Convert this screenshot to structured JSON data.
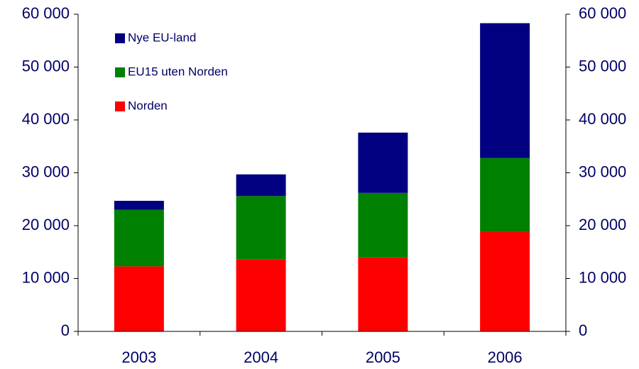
{
  "chart_data": {
    "type": "stacked_bar",
    "categories": [
      "2003",
      "2004",
      "2005",
      "2006"
    ],
    "series": [
      {
        "name": "Norden",
        "color": "#ff0000",
        "values": [
          12300,
          13600,
          14000,
          18800
        ]
      },
      {
        "name": "EU15 uten Norden",
        "color": "#008000",
        "values": [
          10700,
          12000,
          12200,
          14000
        ]
      },
      {
        "name": "Nye EU-land",
        "color": "#000080",
        "values": [
          1700,
          4100,
          11400,
          25500
        ]
      }
    ],
    "ylim": [
      0,
      60000
    ],
    "yticks": [
      0,
      {
        "value": 10000,
        "label": "10 000"
      },
      {
        "value": 20000,
        "label": "20 000"
      },
      {
        "value": 30000,
        "label": "30 000"
      },
      {
        "value": 40000,
        "label": "40 000"
      },
      {
        "value": 50000,
        "label": "50 000"
      },
      {
        "value": 60000,
        "label": "60 000"
      }
    ],
    "y2lim": [
      0,
      60000
    ],
    "y2ticks": [
      0,
      {
        "value": 10000,
        "label": "10 000"
      },
      {
        "value": 20000,
        "label": "20 000"
      },
      {
        "value": 30000,
        "label": "30 000"
      },
      {
        "value": 40000,
        "label": "40 000"
      },
      {
        "value": 50000,
        "label": "50 000"
      },
      {
        "value": 60000,
        "label": "60 000"
      }
    ],
    "legend": "upper left"
  }
}
